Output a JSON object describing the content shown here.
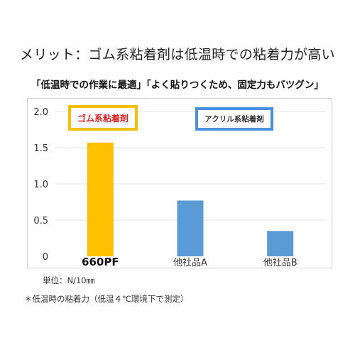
{
  "title": "メリット：ゴム系粘着剤は低温時での粘着力が高い",
  "subtitle": "「低温時での作業に最適」「よく貼りつくため、固定力もバツグン」",
  "unit_note": "単位：N/10㎜",
  "footnote": "＊低温時の粘着力（低温４℃環境下で測定）",
  "legend": {
    "rubber": "ゴム系粘着剤",
    "acrylic": "アクリル系粘着剤"
  },
  "colors": {
    "rubber": "#ffc000",
    "acrylic": "#5b9bd5",
    "legend_rubber_border": "#f6c000",
    "legend_acrylic_border": "#4a8fe0",
    "legend_rubber_text": "#e02020",
    "grid": "#e3e3e3"
  },
  "chart_data": {
    "type": "bar",
    "categories": [
      "660PF",
      "他社品A",
      "他社品B"
    ],
    "values": [
      1.57,
      0.77,
      0.35
    ],
    "bar_colors": [
      "#ffc000",
      "#5b9bd5",
      "#5b9bd5"
    ],
    "yticks": [
      "0",
      "0.5",
      "1.0",
      "1.5",
      "2.0"
    ],
    "ylim": [
      0,
      2.0
    ],
    "grid": true
  }
}
